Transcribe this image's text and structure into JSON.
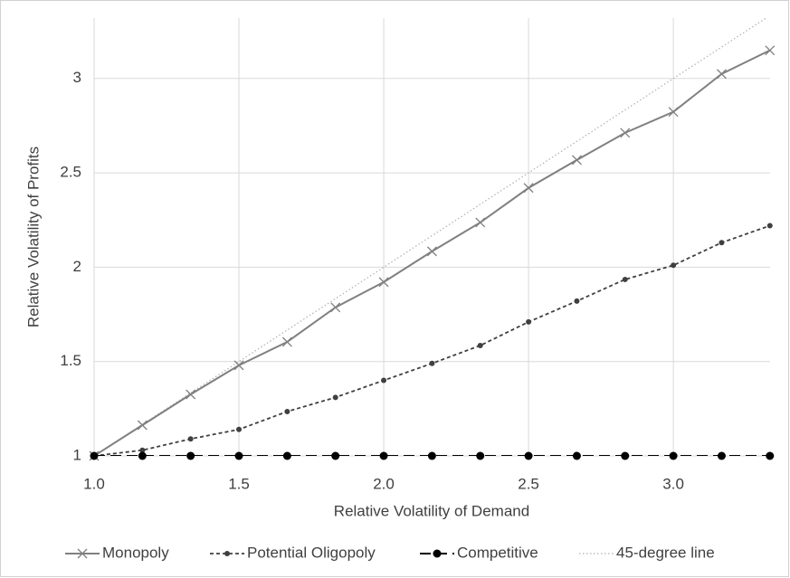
{
  "chart_data": {
    "type": "line",
    "x_label": "Relative Volatility of Demand",
    "y_label": "Relative Volatility of Profits",
    "x": [
      1,
      1.1667,
      1.3333,
      1.5,
      1.6667,
      1.8333,
      2,
      2.1667,
      2.3333,
      2.5,
      2.6667,
      2.8333,
      3,
      3.1667,
      3.3333
    ],
    "series": [
      {
        "name": "Monopoly",
        "color": "#808080",
        "marker": "x",
        "dash": "solid",
        "values": [
          1,
          1.163,
          1.326,
          1.48,
          1.604,
          1.787,
          1.921,
          2.084,
          2.237,
          2.42,
          2.568,
          2.712,
          2.823,
          3.024,
          3.149
        ]
      },
      {
        "name": "Potential Oligopoly",
        "color": "#404040",
        "marker": "small-dot",
        "dash": "short",
        "values": [
          1,
          1.03,
          1.09,
          1.14,
          1.235,
          1.31,
          1.4,
          1.49,
          1.585,
          1.71,
          1.82,
          1.935,
          2.01,
          2.13,
          2.22
        ]
      },
      {
        "name": "Competitive",
        "color": "#000000",
        "marker": "dot",
        "dash": "long",
        "values": [
          1,
          1,
          1,
          1,
          1,
          1,
          1,
          1,
          1,
          1,
          1,
          1,
          1,
          1,
          1
        ]
      },
      {
        "name": "45-degree line",
        "color": "#b0b0b0",
        "marker": "none",
        "dash": "dotted",
        "x": [
          1,
          3.32
        ],
        "values": [
          1,
          3.32
        ]
      }
    ],
    "xlim": [
      1,
      3.334
    ],
    "ylim": [
      1,
      3.32
    ],
    "xticks": [
      {
        "value": 1,
        "label": "1.0"
      },
      {
        "value": 1.5,
        "label": "1.5"
      },
      {
        "value": 2,
        "label": "2.0"
      },
      {
        "value": 2.5,
        "label": "2.5"
      },
      {
        "value": 3,
        "label": "3.0"
      }
    ],
    "yticks": [
      1,
      1.5,
      2,
      2.5,
      3
    ],
    "grid": true,
    "legend": "bottom"
  }
}
